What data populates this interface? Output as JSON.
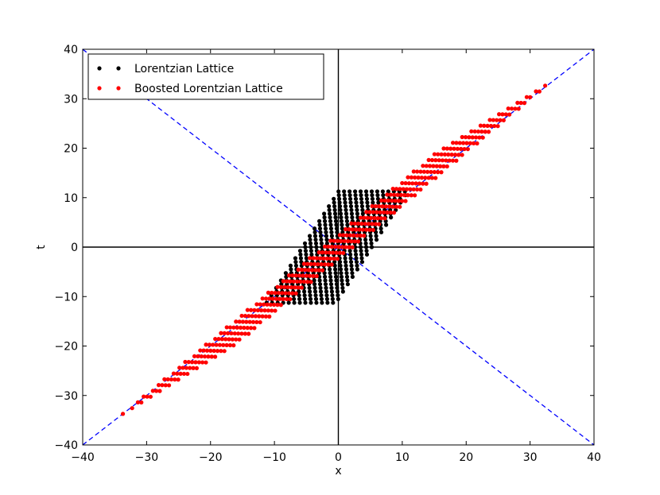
{
  "chart_data": {
    "type": "scatter",
    "title": "",
    "xlabel": "x",
    "ylabel": "t",
    "xlim": [
      -40,
      40
    ],
    "ylim": [
      -40,
      40
    ],
    "xticks": [
      -40,
      -30,
      -20,
      -10,
      0,
      10,
      20,
      30,
      40
    ],
    "yticks": [
      -40,
      -30,
      -20,
      -10,
      0,
      10,
      20,
      30,
      40
    ],
    "xtick_labels": [
      "−40",
      "−30",
      "−20",
      "−10",
      "0",
      "10",
      "20",
      "30",
      "40"
    ],
    "ytick_labels": [
      "−40",
      "−30",
      "−20",
      "−10",
      "0",
      "10",
      "20",
      "30",
      "40"
    ],
    "grid": false,
    "legend_position": "top-left",
    "series": [
      {
        "name": "Lorentzian Lattice",
        "color": "#000000",
        "generator": {
          "t_rows": [
            -11.25,
            11.25
          ],
          "row_step": 0.75,
          "x_offsets": [
            -5.6,
            5.6
          ],
          "x_step": 0.866,
          "shear": 0.5
        }
      },
      {
        "name": "Boosted Lorentzian Lattice",
        "color": "#ff0000",
        "generator": {
          "source_series": "Lorentzian Lattice",
          "boost_factor": 3.0
        }
      }
    ],
    "reference_lines": [
      {
        "type": "axis",
        "orientation": "horizontal",
        "value": 0,
        "color": "#000000"
      },
      {
        "type": "axis",
        "orientation": "vertical",
        "value": 0,
        "color": "#000000"
      },
      {
        "type": "light_cone",
        "from": [
          -40,
          -40
        ],
        "to": [
          40,
          40
        ],
        "color": "#0000ff",
        "style": "dashed"
      },
      {
        "type": "light_cone",
        "from": [
          -40,
          40
        ],
        "to": [
          40,
          -40
        ],
        "color": "#0000ff",
        "style": "dashed"
      }
    ]
  }
}
